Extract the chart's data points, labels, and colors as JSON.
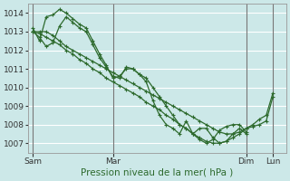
{
  "xlabel": "Pression niveau de la mer( hPa )",
  "ylim": [
    1006.5,
    1014.5
  ],
  "yticks": [
    1007,
    1008,
    1009,
    1010,
    1011,
    1012,
    1013,
    1014
  ],
  "xtick_labels": [
    "Sam",
    "Mar",
    "Dim",
    "Lun"
  ],
  "xtick_positions": [
    0,
    72,
    192,
    216
  ],
  "xlim": [
    -4,
    228
  ],
  "bg_color": "#cce8e8",
  "grid_color": "#ffffff",
  "line_color": "#2d6a2d",
  "line1": {
    "x": [
      0,
      6,
      12,
      18,
      24,
      30,
      36,
      42,
      48,
      54,
      60,
      66,
      72,
      78,
      84,
      90,
      96,
      102,
      108,
      114,
      120,
      126,
      132,
      138,
      144,
      150,
      156,
      162,
      168,
      174,
      180,
      186,
      192,
      198,
      204,
      210,
      216
    ],
    "y": [
      1013.0,
      1013.0,
      1013.0,
      1012.8,
      1012.5,
      1012.2,
      1012.0,
      1011.8,
      1011.6,
      1011.4,
      1011.2,
      1011.0,
      1010.8,
      1010.6,
      1010.4,
      1010.2,
      1010.0,
      1009.8,
      1009.6,
      1009.4,
      1009.2,
      1009.0,
      1008.8,
      1008.6,
      1008.4,
      1008.2,
      1008.0,
      1007.8,
      1007.6,
      1007.5,
      1007.5,
      1007.6,
      1007.8,
      1007.9,
      1008.0,
      1008.2,
      1009.5
    ]
  },
  "line2": {
    "x": [
      0,
      6,
      12,
      18,
      24,
      30,
      36,
      42,
      48,
      54,
      60,
      66,
      72,
      78,
      84,
      90,
      96,
      102,
      108,
      114,
      120,
      126,
      132,
      138,
      144,
      150,
      156,
      162,
      168,
      174,
      180,
      186,
      192,
      198,
      204,
      210,
      216
    ],
    "y": [
      1013.0,
      1012.9,
      1012.7,
      1012.5,
      1012.3,
      1012.0,
      1011.8,
      1011.5,
      1011.3,
      1011.0,
      1010.8,
      1010.5,
      1010.3,
      1010.1,
      1009.9,
      1009.7,
      1009.5,
      1009.2,
      1009.0,
      1008.8,
      1008.5,
      1008.3,
      1008.0,
      1007.8,
      1007.5,
      1007.3,
      1007.1,
      1007.0,
      1007.0,
      1007.1,
      1007.3,
      1007.5,
      1007.8,
      1008.0,
      1008.3,
      1008.5,
      1009.7
    ]
  },
  "line3": {
    "x": [
      0,
      6,
      12,
      18,
      24,
      30,
      36,
      42,
      48,
      54,
      60,
      66,
      72,
      78,
      84,
      90,
      96,
      102,
      108,
      114,
      120,
      126,
      132,
      138,
      144,
      150,
      156,
      162,
      168,
      174,
      180,
      186,
      192
    ],
    "y": [
      1013.2,
      1012.5,
      1013.8,
      1013.9,
      1014.2,
      1014.0,
      1013.7,
      1013.4,
      1013.2,
      1012.5,
      1011.8,
      1011.2,
      1010.5,
      1010.6,
      1011.0,
      1011.0,
      1010.7,
      1010.5,
      1010.0,
      1009.5,
      1009.0,
      1008.5,
      1008.0,
      1007.8,
      1007.5,
      1007.8,
      1007.8,
      1007.3,
      1007.0,
      1007.1,
      1007.5,
      1007.8,
      1007.5
    ]
  },
  "line4": {
    "x": [
      0,
      6,
      12,
      18,
      24,
      30,
      36,
      42,
      48,
      54,
      60,
      66,
      72,
      78,
      84,
      90,
      96,
      102,
      108,
      114,
      120,
      126,
      132,
      138,
      144,
      150,
      156,
      162,
      168,
      174,
      180,
      186,
      192
    ],
    "y": [
      1013.0,
      1012.7,
      1012.2,
      1012.4,
      1013.3,
      1013.8,
      1013.5,
      1013.2,
      1013.0,
      1012.3,
      1011.6,
      1011.1,
      1010.6,
      1010.5,
      1011.1,
      1011.0,
      1010.7,
      1010.3,
      1009.3,
      1008.5,
      1008.0,
      1007.8,
      1007.5,
      1008.2,
      1007.5,
      1007.2,
      1007.0,
      1007.2,
      1007.7,
      1007.9,
      1008.0,
      1008.0,
      1007.6
    ]
  },
  "vline_positions": [
    0,
    72,
    192,
    216
  ]
}
